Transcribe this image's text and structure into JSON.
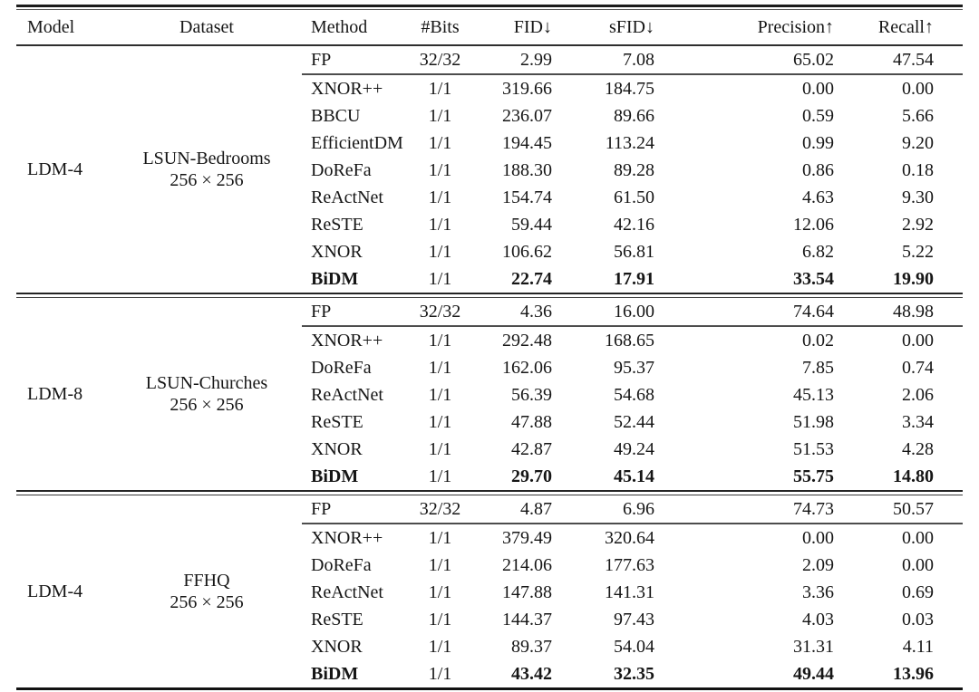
{
  "table": {
    "columns": [
      {
        "key": "model",
        "label": "Model"
      },
      {
        "key": "dataset",
        "label": "Dataset"
      },
      {
        "key": "method",
        "label": "Method"
      },
      {
        "key": "bits",
        "label": "#Bits"
      },
      {
        "key": "fid",
        "label": "FID↓"
      },
      {
        "key": "sfid",
        "label": "sFID↓"
      },
      {
        "key": "precision",
        "label": "Precision↑"
      },
      {
        "key": "recall",
        "label": "Recall↑"
      }
    ],
    "groups": [
      {
        "model": "LDM-4",
        "dataset_name": "LSUN-Bedrooms",
        "dataset_size": "256 × 256",
        "rows": [
          {
            "method": "FP",
            "bits": "32/32",
            "fid": "2.99",
            "sfid": "7.08",
            "precision": "65.02",
            "recall": "47.54",
            "best": false
          },
          {
            "method": "XNOR++",
            "bits": "1/1",
            "fid": "319.66",
            "sfid": "184.75",
            "precision": "0.00",
            "recall": "0.00",
            "best": false
          },
          {
            "method": "BBCU",
            "bits": "1/1",
            "fid": "236.07",
            "sfid": "89.66",
            "precision": "0.59",
            "recall": "5.66",
            "best": false
          },
          {
            "method": "EfficientDM",
            "bits": "1/1",
            "fid": "194.45",
            "sfid": "113.24",
            "precision": "0.99",
            "recall": "9.20",
            "best": false
          },
          {
            "method": "DoReFa",
            "bits": "1/1",
            "fid": "188.30",
            "sfid": "89.28",
            "precision": "0.86",
            "recall": "0.18",
            "best": false
          },
          {
            "method": "ReActNet",
            "bits": "1/1",
            "fid": "154.74",
            "sfid": "61.50",
            "precision": "4.63",
            "recall": "9.30",
            "best": false
          },
          {
            "method": "ReSTE",
            "bits": "1/1",
            "fid": "59.44",
            "sfid": "42.16",
            "precision": "12.06",
            "recall": "2.92",
            "best": false
          },
          {
            "method": "XNOR",
            "bits": "1/1",
            "fid": "106.62",
            "sfid": "56.81",
            "precision": "6.82",
            "recall": "5.22",
            "best": false
          },
          {
            "method": "BiDM",
            "bits": "1/1",
            "fid": "22.74",
            "sfid": "17.91",
            "precision": "33.54",
            "recall": "19.90",
            "best": true
          }
        ]
      },
      {
        "model": "LDM-8",
        "dataset_name": "LSUN-Churches",
        "dataset_size": "256 × 256",
        "rows": [
          {
            "method": "FP",
            "bits": "32/32",
            "fid": "4.36",
            "sfid": "16.00",
            "precision": "74.64",
            "recall": "48.98",
            "best": false
          },
          {
            "method": "XNOR++",
            "bits": "1/1",
            "fid": "292.48",
            "sfid": "168.65",
            "precision": "0.02",
            "recall": "0.00",
            "best": false
          },
          {
            "method": "DoReFa",
            "bits": "1/1",
            "fid": "162.06",
            "sfid": "95.37",
            "precision": "7.85",
            "recall": "0.74",
            "best": false
          },
          {
            "method": "ReActNet",
            "bits": "1/1",
            "fid": "56.39",
            "sfid": "54.68",
            "precision": "45.13",
            "recall": "2.06",
            "best": false
          },
          {
            "method": "ReSTE",
            "bits": "1/1",
            "fid": "47.88",
            "sfid": "52.44",
            "precision": "51.98",
            "recall": "3.34",
            "best": false
          },
          {
            "method": "XNOR",
            "bits": "1/1",
            "fid": "42.87",
            "sfid": "49.24",
            "precision": "51.53",
            "recall": "4.28",
            "best": false
          },
          {
            "method": "BiDM",
            "bits": "1/1",
            "fid": "29.70",
            "sfid": "45.14",
            "precision": "55.75",
            "recall": "14.80",
            "best": true
          }
        ]
      },
      {
        "model": "LDM-4",
        "dataset_name": "FFHQ",
        "dataset_size": "256 × 256",
        "rows": [
          {
            "method": "FP",
            "bits": "32/32",
            "fid": "4.87",
            "sfid": "6.96",
            "precision": "74.73",
            "recall": "50.57",
            "best": false
          },
          {
            "method": "XNOR++",
            "bits": "1/1",
            "fid": "379.49",
            "sfid": "320.64",
            "precision": "0.00",
            "recall": "0.00",
            "best": false
          },
          {
            "method": "DoReFa",
            "bits": "1/1",
            "fid": "214.06",
            "sfid": "177.63",
            "precision": "2.09",
            "recall": "0.00",
            "best": false
          },
          {
            "method": "ReActNet",
            "bits": "1/1",
            "fid": "147.88",
            "sfid": "141.31",
            "precision": "3.36",
            "recall": "0.69",
            "best": false
          },
          {
            "method": "ReSTE",
            "bits": "1/1",
            "fid": "144.37",
            "sfid": "97.43",
            "precision": "4.03",
            "recall": "0.03",
            "best": false
          },
          {
            "method": "XNOR",
            "bits": "1/1",
            "fid": "89.37",
            "sfid": "54.04",
            "precision": "31.31",
            "recall": "4.11",
            "best": false
          },
          {
            "method": "BiDM",
            "bits": "1/1",
            "fid": "43.42",
            "sfid": "32.35",
            "precision": "49.44",
            "recall": "13.96",
            "best": true
          }
        ]
      }
    ]
  }
}
